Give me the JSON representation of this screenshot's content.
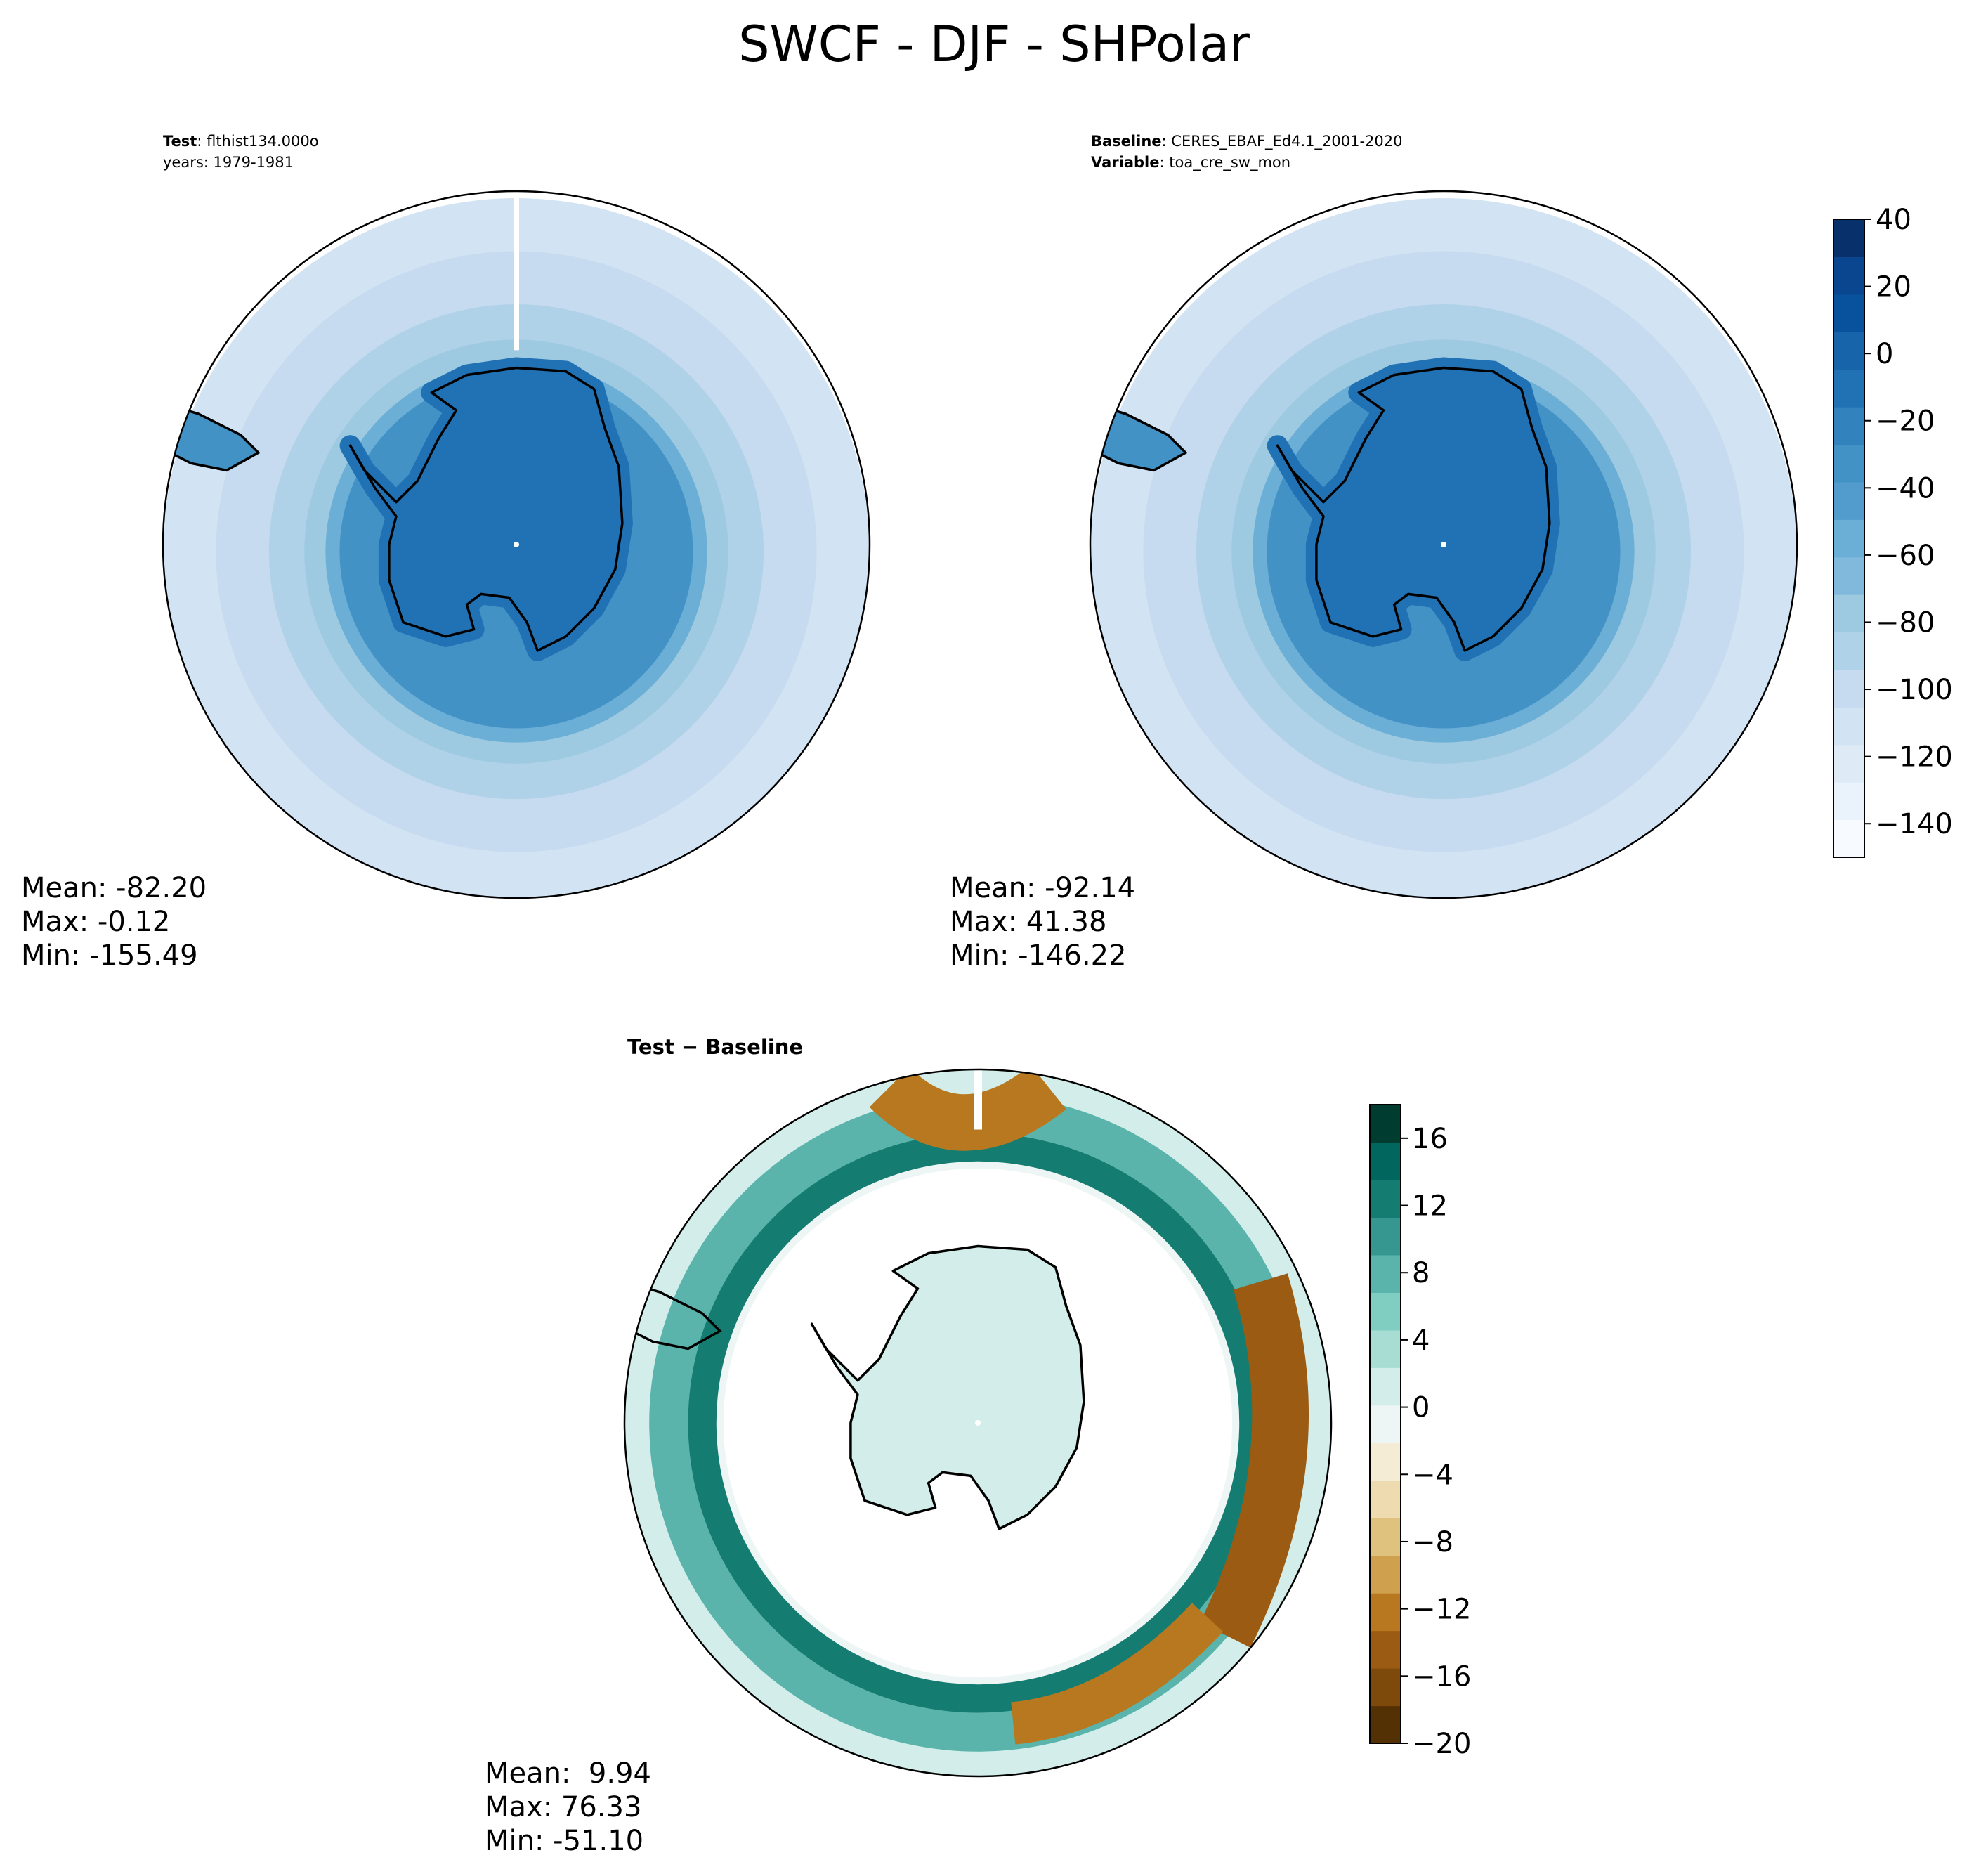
{
  "title": "SWCF - DJF - SHPolar",
  "panels": {
    "test": {
      "label_key": "Test",
      "label_value": "flthist134.000o",
      "sub_line": "years: 1979-1981",
      "stats": {
        "mean": "Mean: -82.20",
        "max": "Max: -0.12",
        "min": "Min: -155.49"
      }
    },
    "baseline": {
      "label_key1": "Baseline",
      "label_value1": "CERES_EBAF_Ed4.1_2001-2020",
      "label_key2": "Variable",
      "label_value2": "toa_cre_sw_mon",
      "stats": {
        "mean": "Mean: -92.14",
        "max": "Max: 41.38",
        "min": "Min: -146.22"
      }
    },
    "diff": {
      "label": "Test − Baseline",
      "stats": {
        "mean": "Mean:  9.94",
        "max": "Max: 76.33",
        "min": "Min: -51.10"
      }
    }
  },
  "chart_data": [
    {
      "type": "heatmap",
      "name": "test",
      "projection": "south-polar-stereographic",
      "colormap": "Blues",
      "levels_range": [
        -150,
        40
      ],
      "colorbar_ticks": [
        40,
        20,
        0,
        -20,
        -40,
        -60,
        -80,
        -100,
        -120,
        -140
      ],
      "colorbar_tick_labels": [
        "40",
        "20",
        "0",
        "−20",
        "−40",
        "−60",
        "−80",
        "−100",
        "−120",
        "−140"
      ],
      "mean": -82.2,
      "max": -0.12,
      "min": -155.49
    },
    {
      "type": "heatmap",
      "name": "baseline",
      "projection": "south-polar-stereographic",
      "colormap": "Blues",
      "levels_range": [
        -150,
        40
      ],
      "mean": -92.14,
      "max": 41.38,
      "min": -146.22
    },
    {
      "type": "heatmap",
      "name": "diff",
      "projection": "south-polar-stereographic",
      "colormap": "BrBG",
      "levels_range": [
        -20,
        18
      ],
      "colorbar_ticks": [
        16,
        12,
        8,
        4,
        0,
        -4,
        -8,
        -12,
        -16,
        -20
      ],
      "colorbar_tick_labels": [
        "16",
        "12",
        "8",
        "4",
        "0",
        "−4",
        "−8",
        "−12",
        "−16",
        "−20"
      ],
      "mean": 9.94,
      "max": 76.33,
      "min": -51.1
    }
  ],
  "colors": {
    "blues": [
      "#f7fbff",
      "#eaf3fb",
      "#deebf7",
      "#d2e3f3",
      "#c6dbef",
      "#b0d2e8",
      "#9ecae1",
      "#80b9db",
      "#6baed6",
      "#519ccc",
      "#4292c6",
      "#3282be",
      "#2171b5",
      "#1764ab",
      "#08519c",
      "#0a4690",
      "#08306b"
    ],
    "brbg": [
      "#543005",
      "#7e4a0b",
      "#9c5b12",
      "#b8781f",
      "#cfa04e",
      "#dfc27d",
      "#eedbaf",
      "#f5ecd6",
      "#eef6f5",
      "#d3eeea",
      "#a8ddd3",
      "#80cdc1",
      "#5ab4ac",
      "#35978f",
      "#147c70",
      "#01665e",
      "#003c30"
    ],
    "land_outline": "#000000"
  }
}
